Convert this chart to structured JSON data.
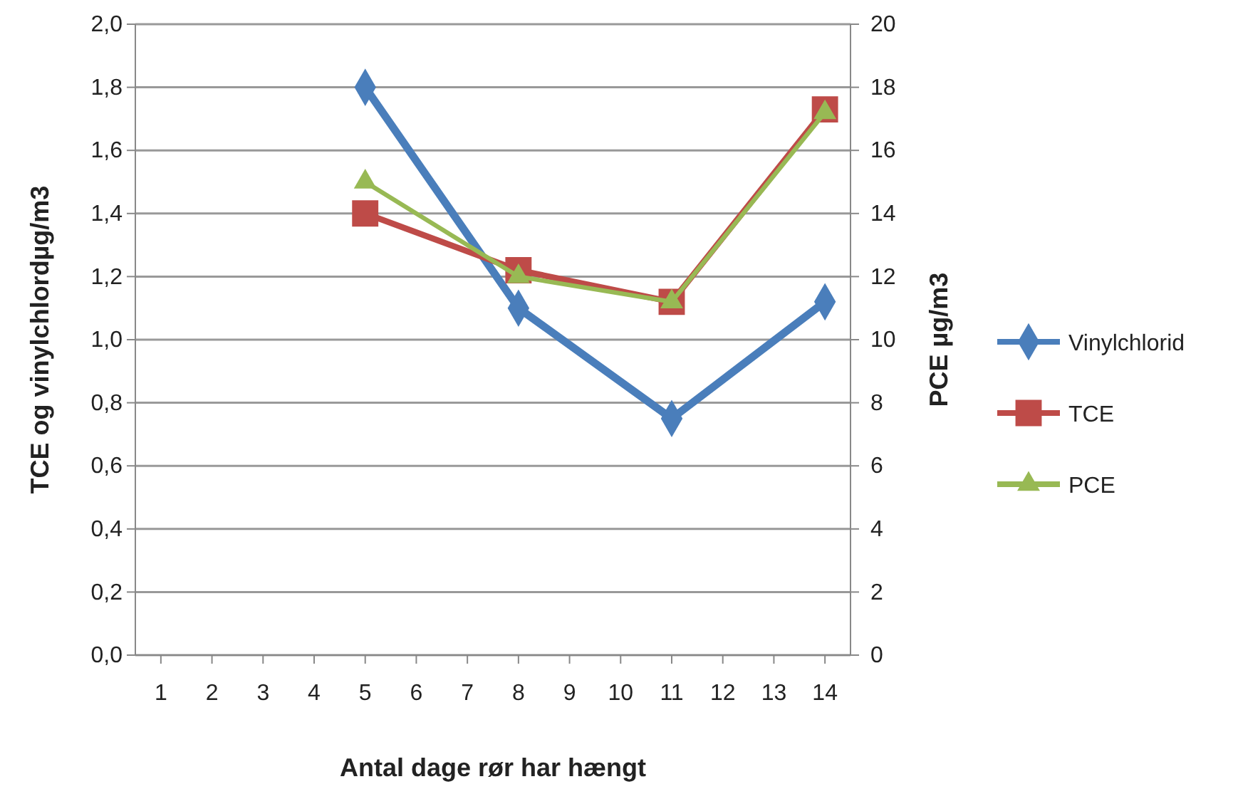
{
  "chart_data": {
    "type": "line",
    "xlabel": "Antal dage rør har hængt",
    "ylabel": "TCE og vinylchlordµg/m3",
    "y2label": "PCE µg/m3",
    "x": [
      5,
      8,
      11,
      14
    ],
    "xlim": [
      0.5,
      14.5
    ],
    "xticks": [
      1,
      2,
      3,
      4,
      5,
      6,
      7,
      8,
      9,
      10,
      11,
      12,
      13,
      14
    ],
    "ylim": [
      0,
      2
    ],
    "yticks": [
      {
        "value": 0,
        "label": "0,0"
      },
      {
        "value": 0.2,
        "label": "0,2"
      },
      {
        "value": 0.4,
        "label": "0,4"
      },
      {
        "value": 0.6,
        "label": "0,6"
      },
      {
        "value": 0.8,
        "label": "0,8"
      },
      {
        "value": 1,
        "label": "1,0"
      },
      {
        "value": 1.2,
        "label": "1,2"
      },
      {
        "value": 1.4,
        "label": "1,4"
      },
      {
        "value": 1.6,
        "label": "1,6"
      },
      {
        "value": 1.8,
        "label": "1,8"
      },
      {
        "value": 2,
        "label": "2,0"
      }
    ],
    "y2lim": [
      0,
      20
    ],
    "y2ticks": [
      0,
      2,
      4,
      6,
      8,
      10,
      12,
      14,
      16,
      18,
      20
    ],
    "grid": "y",
    "legend": "right",
    "series": [
      {
        "name": "Vinylchlorid",
        "color": "#4a7ebb",
        "marker": "diamond",
        "values": [
          1.8,
          1.1,
          0.75,
          1.12
        ]
      },
      {
        "name": "TCE",
        "color": "#be4b48",
        "marker": "square",
        "values": [
          1.4,
          1.22,
          1.12,
          1.73
        ]
      },
      {
        "name": "PCE",
        "color": "#98b954",
        "marker": "triangle",
        "axis": "y2",
        "values": [
          15,
          12,
          11.2,
          17.2
        ]
      }
    ]
  }
}
